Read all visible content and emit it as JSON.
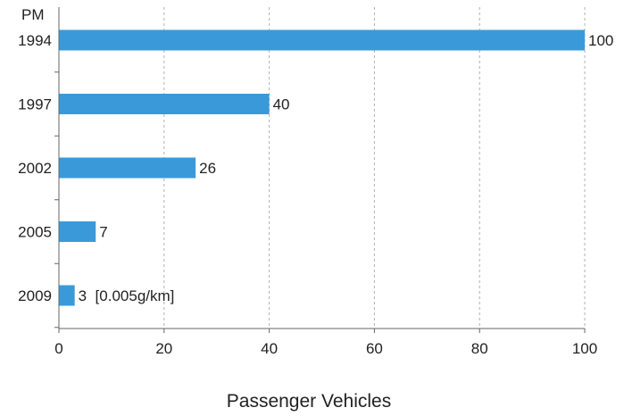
{
  "chart_data": {
    "type": "bar",
    "orientation": "horizontal",
    "title": "",
    "corner_label": "PM",
    "xlabel": "Passenger Vehicles",
    "ylabel": "",
    "categories": [
      "1994",
      "1997",
      "2002",
      "2005",
      "2009"
    ],
    "values": [
      100,
      40,
      26,
      7,
      3
    ],
    "data_labels": [
      "100",
      "40",
      "26",
      "7",
      "3  [0.005g/km]"
    ],
    "xlim": [
      0,
      100
    ],
    "x_ticks": [
      0,
      20,
      40,
      60,
      80,
      100
    ],
    "grid": "vertical dashed",
    "bar_color": "#3a9ad9",
    "grid_color": "#b0b0b0",
    "axis_color": "#666666"
  }
}
